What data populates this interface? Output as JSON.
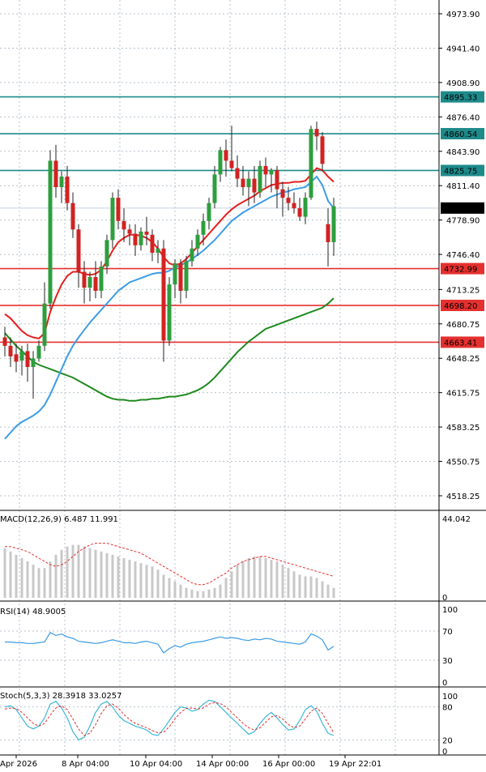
{
  "chart_data": [
    {
      "type": "candlestick",
      "panel": "price",
      "y_ticks": [
        "4973.90",
        "4941.40",
        "4908.90",
        "4876.40",
        "4843.90",
        "4811.40",
        "4778.90",
        "4746.40",
        "4713.25",
        "4680.75",
        "4648.25",
        "4615.75",
        "4583.25",
        "4550.75",
        "4518.25"
      ],
      "ylim": [
        4500,
        4995
      ],
      "current_price": "4790.24",
      "horizontal_levels": [
        {
          "label": "4895.33",
          "value": 4895.33,
          "color": "#1e8a8a"
        },
        {
          "label": "4860.54",
          "value": 4860.54,
          "color": "#1e8a8a"
        },
        {
          "label": "4825.75",
          "value": 4825.75,
          "color": "#1e8a8a"
        },
        {
          "label": "4732.99",
          "value": 4732.99,
          "color": "#e53030"
        },
        {
          "label": "4698.20",
          "value": 4698.2,
          "color": "#e53030"
        },
        {
          "label": "4663.41",
          "value": 4663.41,
          "color": "#e53030"
        }
      ],
      "x_labels": [
        "Apr 2026",
        "8 Apr 04:00",
        "10 Apr 04:00",
        "14 Apr 00:00",
        "16 Apr 00:00",
        "19 Apr 22:01"
      ],
      "candles": [
        {
          "o": 4668,
          "h": 4678,
          "l": 4650,
          "c": 4660
        },
        {
          "o": 4660,
          "h": 4668,
          "l": 4640,
          "c": 4650
        },
        {
          "o": 4652,
          "h": 4662,
          "l": 4635,
          "c": 4645
        },
        {
          "o": 4646,
          "h": 4660,
          "l": 4632,
          "c": 4655
        },
        {
          "o": 4655,
          "h": 4662,
          "l": 4626,
          "c": 4640
        },
        {
          "o": 4640,
          "h": 4655,
          "l": 4610,
          "c": 4648
        },
        {
          "o": 4648,
          "h": 4665,
          "l": 4645,
          "c": 4660
        },
        {
          "o": 4660,
          "h": 4720,
          "l": 4655,
          "c": 4700
        },
        {
          "o": 4700,
          "h": 4845,
          "l": 4695,
          "c": 4835
        },
        {
          "o": 4835,
          "h": 4850,
          "l": 4800,
          "c": 4810
        },
        {
          "o": 4810,
          "h": 4825,
          "l": 4795,
          "c": 4820
        },
        {
          "o": 4820,
          "h": 4830,
          "l": 4788,
          "c": 4795
        },
        {
          "o": 4795,
          "h": 4805,
          "l": 4762,
          "c": 4770
        },
        {
          "o": 4770,
          "h": 4775,
          "l": 4715,
          "c": 4730
        },
        {
          "o": 4730,
          "h": 4740,
          "l": 4700,
          "c": 4715
        },
        {
          "o": 4715,
          "h": 4730,
          "l": 4702,
          "c": 4725
        },
        {
          "o": 4725,
          "h": 4740,
          "l": 4705,
          "c": 4712
        },
        {
          "o": 4712,
          "h": 4740,
          "l": 4705,
          "c": 4735
        },
        {
          "o": 4735,
          "h": 4765,
          "l": 4728,
          "c": 4760
        },
        {
          "o": 4760,
          "h": 4805,
          "l": 4752,
          "c": 4800
        },
        {
          "o": 4800,
          "h": 4808,
          "l": 4770,
          "c": 4778
        },
        {
          "o": 4778,
          "h": 4790,
          "l": 4758,
          "c": 4770
        },
        {
          "o": 4770,
          "h": 4775,
          "l": 4755,
          "c": 4766
        },
        {
          "o": 4766,
          "h": 4775,
          "l": 4745,
          "c": 4755
        },
        {
          "o": 4755,
          "h": 4772,
          "l": 4750,
          "c": 4768
        },
        {
          "o": 4768,
          "h": 4782,
          "l": 4755,
          "c": 4765
        },
        {
          "o": 4765,
          "h": 4770,
          "l": 4740,
          "c": 4748
        },
        {
          "o": 4748,
          "h": 4760,
          "l": 4738,
          "c": 4752
        },
        {
          "o": 4752,
          "h": 4760,
          "l": 4645,
          "c": 4665
        },
        {
          "o": 4665,
          "h": 4725,
          "l": 4660,
          "c": 4718
        },
        {
          "o": 4718,
          "h": 4742,
          "l": 4705,
          "c": 4738
        },
        {
          "o": 4738,
          "h": 4742,
          "l": 4700,
          "c": 4712
        },
        {
          "o": 4712,
          "h": 4745,
          "l": 4705,
          "c": 4740
        },
        {
          "o": 4740,
          "h": 4760,
          "l": 4735,
          "c": 4752
        },
        {
          "o": 4752,
          "h": 4770,
          "l": 4745,
          "c": 4765
        },
        {
          "o": 4765,
          "h": 4785,
          "l": 4755,
          "c": 4778
        },
        {
          "o": 4778,
          "h": 4800,
          "l": 4770,
          "c": 4795
        },
        {
          "o": 4795,
          "h": 4830,
          "l": 4790,
          "c": 4822
        },
        {
          "o": 4822,
          "h": 4848,
          "l": 4815,
          "c": 4845
        },
        {
          "o": 4845,
          "h": 4855,
          "l": 4820,
          "c": 4835
        },
        {
          "o": 4835,
          "h": 4868,
          "l": 4825,
          "c": 4828
        },
        {
          "o": 4828,
          "h": 4840,
          "l": 4810,
          "c": 4818
        },
        {
          "o": 4818,
          "h": 4830,
          "l": 4802,
          "c": 4810
        },
        {
          "o": 4810,
          "h": 4825,
          "l": 4792,
          "c": 4818
        },
        {
          "o": 4818,
          "h": 4830,
          "l": 4795,
          "c": 4805
        },
        {
          "o": 4805,
          "h": 4835,
          "l": 4800,
          "c": 4830
        },
        {
          "o": 4830,
          "h": 4838,
          "l": 4810,
          "c": 4822
        },
        {
          "o": 4822,
          "h": 4828,
          "l": 4805,
          "c": 4826
        },
        {
          "o": 4826,
          "h": 4830,
          "l": 4790,
          "c": 4808
        },
        {
          "o": 4808,
          "h": 4815,
          "l": 4782,
          "c": 4800
        },
        {
          "o": 4800,
          "h": 4810,
          "l": 4788,
          "c": 4795
        },
        {
          "o": 4795,
          "h": 4805,
          "l": 4785,
          "c": 4790
        },
        {
          "o": 4790,
          "h": 4800,
          "l": 4778,
          "c": 4782
        },
        {
          "o": 4782,
          "h": 4805,
          "l": 4775,
          "c": 4800
        },
        {
          "o": 4800,
          "h": 4868,
          "l": 4798,
          "c": 4865
        },
        {
          "o": 4865,
          "h": 4872,
          "l": 4845,
          "c": 4858
        },
        {
          "o": 4858,
          "h": 4862,
          "l": 4825,
          "c": 4832
        },
        {
          "o": 4775,
          "h": 4790,
          "l": 4735,
          "c": 4758
        },
        {
          "o": 4758,
          "h": 4800,
          "l": 4745,
          "c": 4792
        }
      ],
      "ma_red": [
        4690,
        4686,
        4680,
        4674,
        4670,
        4668,
        4667,
        4672,
        4692,
        4706,
        4718,
        4726,
        4730,
        4730,
        4728,
        4727,
        4728,
        4732,
        4740,
        4750,
        4758,
        4762,
        4765,
        4765,
        4764,
        4762,
        4758,
        4752,
        4744,
        4738,
        4736,
        4738,
        4742,
        4748,
        4754,
        4760,
        4766,
        4772,
        4778,
        4784,
        4789,
        4793,
        4796,
        4799,
        4802,
        4806,
        4809,
        4812,
        4813,
        4814,
        4814,
        4815,
        4815,
        4816,
        4822,
        4828,
        4826,
        4820,
        4815
      ],
      "ma_blue": [
        4572,
        4578,
        4584,
        4588,
        4591,
        4594,
        4598,
        4604,
        4614,
        4626,
        4638,
        4650,
        4660,
        4668,
        4675,
        4682,
        4688,
        4694,
        4700,
        4706,
        4712,
        4716,
        4720,
        4722,
        4724,
        4726,
        4728,
        4729,
        4729,
        4731,
        4734,
        4736,
        4739,
        4742,
        4746,
        4750,
        4755,
        4760,
        4766,
        4772,
        4778,
        4782,
        4786,
        4789,
        4792,
        4795,
        4798,
        4801,
        4803,
        4805,
        4806,
        4808,
        4809,
        4810,
        4815,
        4820,
        4812,
        4797,
        4790
      ],
      "ma_green": [
        4672,
        4666,
        4660,
        4655,
        4650,
        4645,
        4642,
        4640,
        4638,
        4636,
        4634,
        4632,
        4630,
        4627,
        4624,
        4621,
        4618,
        4615,
        4612,
        4610,
        4609,
        4609,
        4608,
        4608,
        4609,
        4609,
        4610,
        4610,
        4611,
        4612,
        4612,
        4613,
        4614,
        4616,
        4618,
        4621,
        4625,
        4630,
        4636,
        4642,
        4648,
        4654,
        4659,
        4664,
        4668,
        4672,
        4676,
        4678,
        4680,
        4682,
        4684,
        4686,
        4688,
        4690,
        4692,
        4694,
        4696,
        4700,
        4705
      ]
    },
    {
      "type": "bar+line",
      "panel": "macd",
      "title": "MACD(12,26,9) 6.487 11.991",
      "y_ticks": [
        "44.042",
        "0"
      ],
      "ylim": [
        0,
        44.042
      ],
      "histogram": [
        30,
        28,
        26,
        24,
        22,
        20,
        18,
        18,
        22,
        26,
        29,
        31,
        32,
        32,
        31,
        30,
        29,
        28,
        27,
        26,
        25,
        24,
        23,
        22,
        21,
        20,
        19,
        17,
        14,
        12,
        10,
        8,
        6,
        5,
        4,
        4,
        5,
        6,
        8,
        12,
        16,
        20,
        22,
        24,
        25,
        25,
        24,
        23,
        22,
        20,
        18,
        16,
        14,
        13,
        13,
        12,
        10,
        8,
        6
      ],
      "signal": [
        31,
        31,
        30,
        29,
        28,
        26,
        24,
        22,
        20,
        19,
        20,
        22,
        25,
        28,
        30,
        32,
        33,
        33,
        33,
        32,
        31,
        30,
        29,
        28,
        27,
        25,
        23,
        21,
        19,
        17,
        15,
        13,
        11,
        9,
        8,
        8,
        9,
        11,
        13,
        15,
        18,
        20,
        22,
        23,
        24,
        25,
        25,
        24,
        23,
        22,
        21,
        20,
        19,
        18,
        17,
        16,
        15,
        14,
        13
      ]
    },
    {
      "type": "line",
      "panel": "rsi",
      "title": "RSI(14) 48.9005",
      "y_ticks": [
        "100",
        "70",
        "30",
        "0"
      ],
      "ylim": [
        0,
        100
      ],
      "values": [
        55,
        55,
        54,
        54,
        53,
        53,
        54,
        55,
        68,
        64,
        66,
        62,
        60,
        56,
        55,
        54,
        53,
        54,
        56,
        58,
        56,
        54,
        54,
        53,
        55,
        56,
        54,
        52,
        40,
        46,
        50,
        48,
        52,
        54,
        55,
        56,
        58,
        60,
        62,
        60,
        61,
        60,
        58,
        57,
        59,
        58,
        60,
        59,
        56,
        55,
        54,
        53,
        52,
        55,
        66,
        63,
        58,
        44,
        49
      ]
    },
    {
      "type": "line",
      "panel": "stoch",
      "title": "Stoch(5,3,3) 28.3918 33.0257",
      "y_ticks": [
        "100",
        "80",
        "20",
        "0"
      ],
      "ylim": [
        0,
        100
      ],
      "k": [
        80,
        82,
        75,
        60,
        45,
        40,
        45,
        60,
        85,
        90,
        78,
        60,
        35,
        20,
        25,
        45,
        70,
        85,
        90,
        80,
        65,
        55,
        50,
        45,
        42,
        38,
        30,
        28,
        40,
        55,
        70,
        80,
        78,
        72,
        75,
        85,
        92,
        90,
        80,
        70,
        60,
        50,
        40,
        30,
        35,
        50,
        62,
        70,
        60,
        48,
        38,
        40,
        55,
        75,
        82,
        72,
        50,
        32,
        28
      ],
      "d": [
        76,
        78,
        77,
        70,
        60,
        50,
        45,
        50,
        65,
        78,
        82,
        75,
        58,
        40,
        28,
        32,
        48,
        68,
        82,
        85,
        78,
        66,
        57,
        50,
        46,
        42,
        37,
        33,
        34,
        44,
        58,
        70,
        77,
        78,
        76,
        78,
        85,
        88,
        86,
        80,
        70,
        60,
        50,
        42,
        38,
        42,
        52,
        62,
        64,
        58,
        48,
        42,
        45,
        58,
        72,
        78,
        68,
        50,
        33
      ]
    }
  ]
}
